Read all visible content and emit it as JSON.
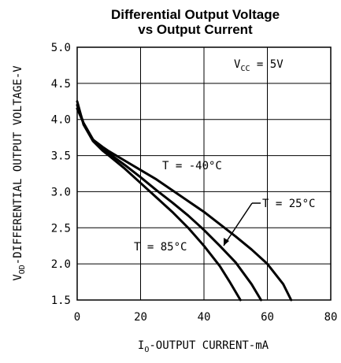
{
  "chart_data": {
    "type": "line",
    "title_line1": "Differential Output Voltage",
    "title_line2": "vs Output Current",
    "ylabel": {
      "main": "V",
      "sub": "OD",
      "rest": "-DIFFERENTIAL OUTPUT VOLTAGE-V"
    },
    "xlabel": {
      "main": "I",
      "sub": "O",
      "rest": "-OUTPUT CURRENT-mA"
    },
    "xlim": [
      0,
      80
    ],
    "ylim": [
      1.5,
      5.0
    ],
    "x_ticks": [
      0,
      20,
      40,
      60,
      80
    ],
    "x_tick_labels": [
      "0",
      "20",
      "40",
      "60",
      "80"
    ],
    "y_ticks": [
      1.5,
      2.0,
      2.5,
      3.0,
      3.5,
      4.0,
      4.5,
      5.0
    ],
    "y_tick_labels": [
      "1.5",
      "2.0",
      "2.5",
      "3.0",
      "3.5",
      "4.0",
      "4.5",
      "5.0"
    ],
    "grid": true,
    "condition": {
      "main": "V",
      "sub": "CC",
      "rest": " = 5V"
    },
    "series": [
      {
        "name": "T = -40°C",
        "x": [
          0,
          2,
          5,
          8,
          10,
          15,
          20,
          25,
          30,
          35,
          40,
          45,
          50,
          55,
          60,
          65,
          67.5
        ],
        "y": [
          4.15,
          3.95,
          3.72,
          3.62,
          3.56,
          3.43,
          3.3,
          3.17,
          3.02,
          2.87,
          2.72,
          2.55,
          2.38,
          2.2,
          2.0,
          1.72,
          1.5
        ]
      },
      {
        "name": "T = 25°C",
        "x": [
          0,
          2,
          5,
          8,
          10,
          15,
          20,
          25,
          30,
          35,
          40,
          45,
          50,
          55,
          58
        ],
        "y": [
          4.2,
          3.95,
          3.72,
          3.6,
          3.53,
          3.37,
          3.2,
          3.02,
          2.85,
          2.67,
          2.47,
          2.25,
          2.02,
          1.72,
          1.5
        ]
      },
      {
        "name": "T = 85°C",
        "x": [
          0,
          2,
          5,
          8,
          10,
          15,
          20,
          25,
          30,
          35,
          40,
          45,
          48,
          51.5
        ],
        "y": [
          4.25,
          3.93,
          3.7,
          3.57,
          3.5,
          3.32,
          3.12,
          2.92,
          2.72,
          2.5,
          2.25,
          1.97,
          1.76,
          1.5
        ]
      }
    ],
    "annotations": [
      {
        "text": "T = -40°C",
        "series": 0
      },
      {
        "text": "T = 25°C",
        "series": 1
      },
      {
        "text": "T = 85°C",
        "series": 2
      }
    ]
  }
}
